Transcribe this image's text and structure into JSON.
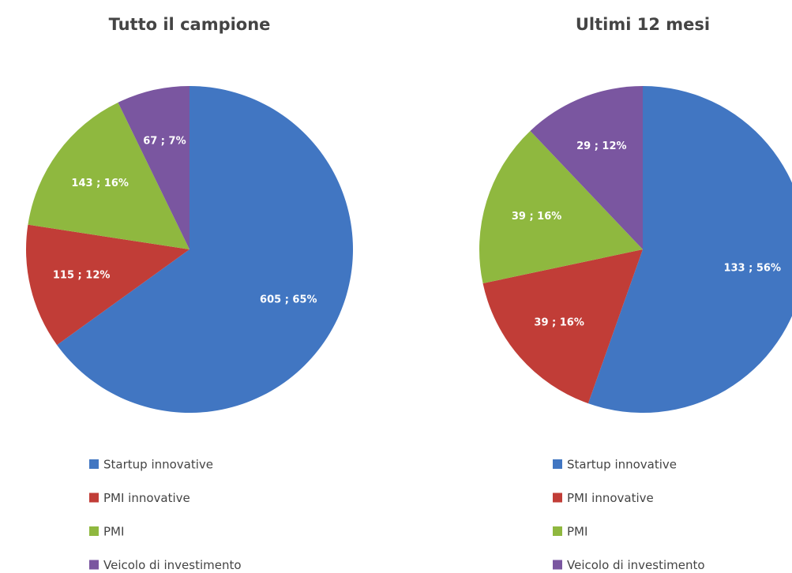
{
  "chart_data": [
    {
      "type": "pie",
      "title": "Tutto il campione",
      "categories": [
        "Startup innovative",
        "PMI innovative",
        "PMI",
        "Veicolo di investimento"
      ],
      "values": [
        605,
        115,
        143,
        67
      ],
      "value_labels": [
        "605 ; 65%",
        "115 ; 12%",
        "143 ; 16%",
        "67 ; 7%"
      ],
      "colors": [
        "#4176c2",
        "#c13d37",
        "#8fb83f",
        "#7a56a0"
      ]
    },
    {
      "type": "pie",
      "title": "Ultimi 12 mesi",
      "categories": [
        "Startup innovative",
        "PMI innovative",
        "PMI",
        "Veicolo di investimento"
      ],
      "values": [
        133,
        39,
        39,
        29
      ],
      "value_labels": [
        "133 ; 56%",
        "39 ; 16%",
        "39 ; 16%",
        "29 ; 12%"
      ],
      "colors": [
        "#4176c2",
        "#c13d37",
        "#8fb83f",
        "#7a56a0"
      ]
    }
  ]
}
